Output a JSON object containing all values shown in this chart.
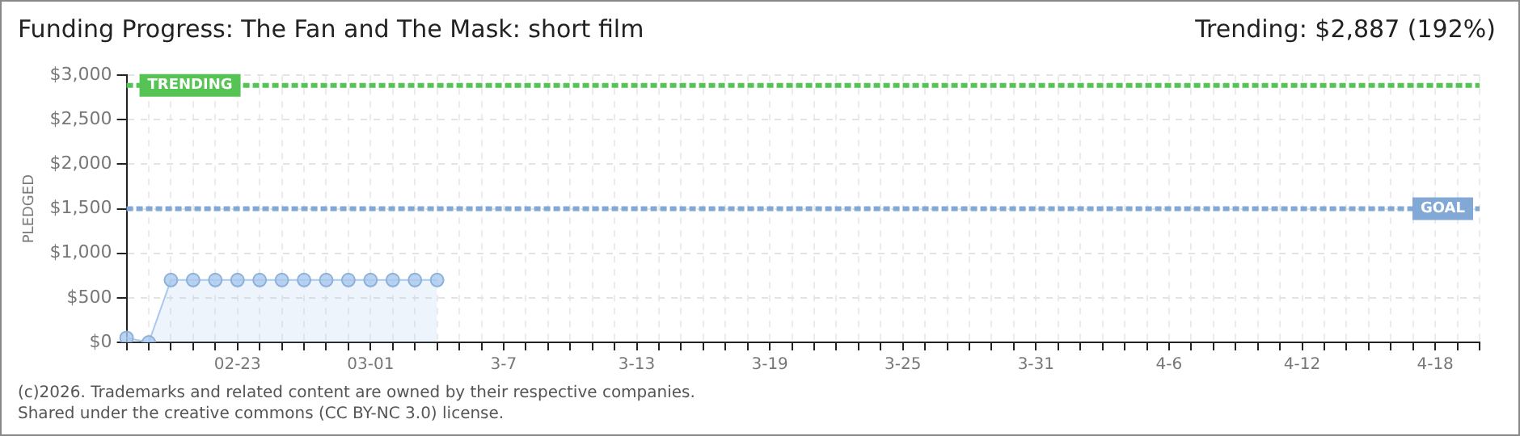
{
  "chart_data": {
    "type": "area",
    "title": "Funding Progress: The Fan and The Mask: short film",
    "subtitle": "Trending: $2,887 (192%)",
    "ylabel": "PLEDGED",
    "categories": [
      null,
      null,
      null,
      null,
      null,
      "02-23",
      null,
      null,
      null,
      null,
      null,
      "03-01",
      null,
      null,
      null,
      null,
      null,
      "3-7",
      null,
      null,
      null,
      null,
      null,
      "3-13",
      null,
      null,
      null,
      null,
      null,
      "3-19",
      null,
      null,
      null,
      null,
      null,
      "3-25",
      null,
      null,
      null,
      null,
      null,
      "3-31",
      null,
      null,
      null,
      null,
      null,
      "4-6",
      null,
      null,
      null,
      null,
      null,
      "4-12",
      null,
      null,
      null,
      null,
      null,
      "4-18",
      null,
      null
    ],
    "series": [
      {
        "color": "#a8c8ee",
        "values": [
          50,
          0,
          700,
          700,
          700,
          700,
          700,
          700,
          700,
          700,
          700,
          700,
          700,
          700,
          700,
          null,
          null,
          null,
          null,
          null,
          null,
          null,
          null,
          null,
          null,
          null,
          null,
          null,
          null,
          null,
          null,
          null,
          null,
          null,
          null,
          null,
          null,
          null,
          null,
          null,
          null,
          null,
          null,
          null,
          null,
          null,
          null,
          null,
          null,
          null,
          null,
          null,
          null,
          null,
          null,
          null,
          null,
          null,
          null,
          null,
          null,
          null
        ]
      }
    ],
    "ylim": [
      0,
      3000
    ],
    "yticks": [
      {
        "value": 0,
        "label": "$0"
      },
      {
        "value": 500,
        "label": "$500"
      },
      {
        "value": 1000,
        "label": "$1,000"
      },
      {
        "value": 1500,
        "label": "$1,500"
      },
      {
        "value": 2000,
        "label": "$2,000"
      },
      {
        "value": 2500,
        "label": "$2,500"
      },
      {
        "value": 3000,
        "label": "$3,000"
      }
    ],
    "grid": true,
    "marker": "circle",
    "legend": false,
    "ref_lines": [
      {
        "axis": "y",
        "value": 2887,
        "label": "TRENDING",
        "color": "#55c455",
        "line_style": "dashed"
      },
      {
        "axis": "y",
        "value": 1500,
        "label": "GOAL",
        "color": "#82a8d6",
        "line_style": "dashed"
      }
    ],
    "annotations": [
      "(c)2026. Trademarks and related content are owned by their respective companies.",
      "Shared under the creative commons (CC BY-NC 3.0) license."
    ]
  }
}
